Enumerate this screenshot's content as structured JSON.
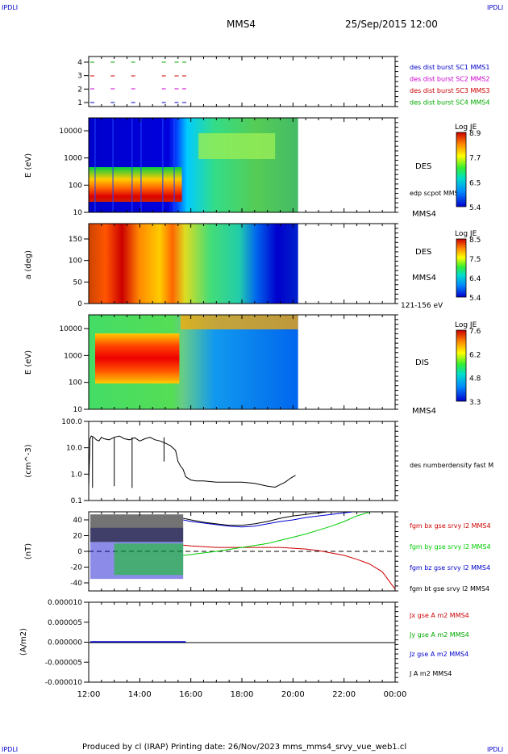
{
  "header": {
    "corner_label": "IPDLI",
    "spacecraft": "MMS4",
    "datetime": "25/Sep/2015 12:00"
  },
  "footer": {
    "text": "Produced by cl (IRAP)   Printing date: 26/Nov/2023   mms_mms4_srvy_vue_web1.cl"
  },
  "colors": {
    "c1": "#0000cc",
    "c2": "#cc00cc",
    "c3": "#cc0000",
    "c4": "#00aa00",
    "black": "#000000"
  },
  "chart_data": [
    {
      "id": "burst",
      "type": "scatter",
      "yticks": [
        "4",
        "3",
        "2",
        "1"
      ],
      "legend": [
        {
          "name": "des dist burst SC1 MMS1",
          "color": "#0000cc"
        },
        {
          "name": "des dist burst SC2 MMS2",
          "color": "#cc00cc"
        },
        {
          "name": "des dist burst SC3 MMS3",
          "color": "#cc0000"
        },
        {
          "name": "des dist burst SC4 MMS4",
          "color": "#00aa00"
        }
      ],
      "intervals_hours": [
        [
          12.0,
          12.3
        ],
        [
          12.8,
          13.1
        ],
        [
          13.6,
          13.9
        ],
        [
          14.8,
          15.1
        ],
        [
          15.3,
          15.6
        ],
        [
          15.6,
          15.9
        ]
      ]
    },
    {
      "id": "des_energy",
      "type": "heatmap",
      "ylabel": "E (eV)",
      "yticks": [
        "10000",
        "1000",
        "100",
        "10"
      ],
      "label": "DES",
      "aux_label": "edp scpot MMS4",
      "bottom_label": "MMS4",
      "colorbar_title": "Log JE",
      "colorbar_ticks": [
        "8.9",
        "7.7",
        "6.5",
        "5.4"
      ]
    },
    {
      "id": "des_pitch",
      "type": "heatmap",
      "ylabel": "a (deg)",
      "yticks": [
        "150",
        "100",
        "50",
        "0"
      ],
      "label": "DES",
      "aux_label": "MMS4",
      "bottom_label": "121-156 eV",
      "colorbar_title": "Log JE",
      "colorbar_ticks": [
        "8.5",
        "7.5",
        "6.4",
        "5.4"
      ]
    },
    {
      "id": "dis_energy",
      "type": "heatmap",
      "ylabel": "E (eV)",
      "yticks": [
        "10000",
        "1000",
        "100",
        "10"
      ],
      "label": "DIS",
      "bottom_label": "MMS4",
      "colorbar_title": "Log JE",
      "colorbar_ticks": [
        "7.6",
        "6.2",
        "4.8",
        "3.3"
      ]
    },
    {
      "id": "density",
      "type": "line",
      "ylabel": "(cm^-3)",
      "yticks": [
        "100.0",
        "10.0",
        "1.0",
        "0.1"
      ],
      "legend": "des numberdensity fast M",
      "x_hours": [
        12.0,
        12.05,
        12.1,
        12.2,
        12.3,
        12.4,
        12.5,
        12.6,
        12.8,
        13.0,
        13.2,
        13.4,
        13.6,
        13.8,
        14.0,
        14.2,
        14.4,
        14.6,
        14.8,
        15.0,
        15.2,
        15.4,
        15.5,
        15.6,
        15.7,
        15.8,
        16.0,
        16.2,
        16.5,
        17.0,
        17.5,
        18.0,
        18.5,
        19.0,
        19.3,
        19.5,
        19.7,
        19.9,
        20.1
      ],
      "y": [
        0.3,
        22,
        28,
        25,
        20,
        18,
        25,
        22,
        20,
        25,
        28,
        22,
        20,
        24,
        18,
        22,
        25,
        20,
        18,
        15,
        12,
        8,
        3,
        2,
        1.5,
        0.8,
        0.6,
        0.55,
        0.55,
        0.5,
        0.5,
        0.5,
        0.45,
        0.35,
        0.32,
        0.4,
        0.5,
        0.7,
        0.9
      ]
    },
    {
      "id": "fgm",
      "type": "line",
      "ylabel": "(nT)",
      "yticks": [
        "40",
        "20",
        "0",
        "-20",
        "-40"
      ],
      "ylim": [
        -48,
        50
      ],
      "series": [
        {
          "name": "fgm bx gse srvy l2 MMS4",
          "color": "#cc0000",
          "x": [
            15.7,
            16.0,
            17.0,
            18.0,
            19.0,
            19.5,
            20.0,
            20.5,
            21.0,
            21.5,
            22.0,
            22.5,
            23.0,
            23.5,
            24.0
          ],
          "y": [
            8,
            7,
            5,
            5,
            5,
            5,
            4,
            3,
            1,
            -2,
            -5,
            -10,
            -16,
            -26,
            -48
          ]
        },
        {
          "name": "fgm by gse srvy l2 MMS4",
          "color": "#00cc00",
          "x": [
            15.7,
            16.0,
            17.0,
            18.0,
            19.0,
            19.5,
            20.0,
            20.5,
            21.0,
            21.5,
            22.0,
            22.5,
            23.0
          ],
          "y": [
            -5,
            -4,
            0,
            5,
            10,
            14,
            18,
            22,
            27,
            32,
            38,
            45,
            50
          ]
        },
        {
          "name": "fgm bz gse srvy l2 MMS4",
          "color": "#0000cc",
          "x": [
            15.7,
            16.0,
            16.5,
            17.0,
            17.5,
            18.0,
            18.5,
            19.0,
            19.5,
            20.0,
            20.5,
            21.0,
            21.5,
            22.0,
            22.3
          ],
          "y": [
            40,
            38,
            36,
            34,
            32,
            31,
            32,
            35,
            38,
            40,
            43,
            45,
            47,
            49,
            50
          ]
        },
        {
          "name": "fgm bt gse srvy l2 MMS4",
          "color": "#000000",
          "x": [
            15.7,
            16.0,
            16.5,
            17.0,
            17.5,
            18.0,
            18.5,
            19.0,
            19.5,
            20.0,
            20.5,
            21.0,
            21.3
          ],
          "y": [
            42,
            40,
            37,
            35,
            33,
            33,
            35,
            38,
            42,
            45,
            47,
            49,
            50
          ]
        }
      ]
    },
    {
      "id": "current",
      "type": "line",
      "ylabel": "(A/m2)",
      "yticks": [
        "0.000010",
        "0.000005",
        "0.000000",
        "-0.000005",
        "-0.000010"
      ],
      "legend": [
        {
          "name": "Jx gse A m2 MMS4",
          "color": "#cc0000"
        },
        {
          "name": "Jy gse A m2 MMS4",
          "color": "#00aa00"
        },
        {
          "name": "Jz gse A m2 MMS4",
          "color": "#0000cc"
        },
        {
          "name": "J A m2 MMS4",
          "color": "#000000"
        }
      ]
    }
  ],
  "time_axis": {
    "labels": [
      "12:00",
      "14:00",
      "16:00",
      "18:00",
      "20:00",
      "22:00",
      "00:00"
    ],
    "start_hour": 12,
    "end_hour": 24
  }
}
